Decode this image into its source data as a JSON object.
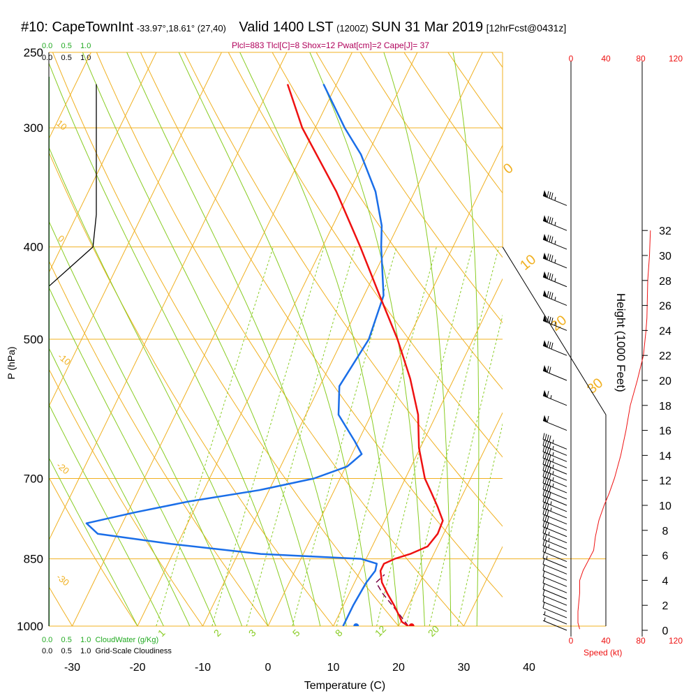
{
  "header": {
    "station": "#10: CapeTownInt",
    "coords": "-33.97°,18.61° (27,40)",
    "valid": "Valid 1400 LST",
    "zulu": "(1200Z)",
    "date": "SUN 31 Mar 2019",
    "forecast": "[12hrFcst@0431z]"
  },
  "stats_line": "Plcl=883 Tlcl[C]=8 Shox=12 Pwat[cm]=2 Cape[J]= 37",
  "top_scales": {
    "cloudwater_ticks": [
      "0.0",
      "0.5",
      "1.0"
    ],
    "cloudiness_ticks": [
      "0.0",
      "0.5",
      "1.0"
    ]
  },
  "bottom_scales": {
    "cloudwater_ticks": [
      "0.0",
      "0.5",
      "1.0"
    ],
    "cloudwater_label": "CloudWater (g/Kg)",
    "cloudiness_ticks": [
      "0.0",
      "0.5",
      "1.0"
    ],
    "cloudiness_label": "Grid-Scale Cloudiness"
  },
  "colors": {
    "isotherm": "#f0b020",
    "dry_adiabat": "#f0b020",
    "moist_adiabat": "#88cc22",
    "mixing_ratio": "#88cc22",
    "temperature": "#ee1111",
    "dewpoint": "#1a6ee8",
    "parcel": "#770044",
    "speed": "#ee1111",
    "cloud_water": "#22aa22"
  },
  "chart_data": {
    "type": "line",
    "title": "#10: CapeTownInt -33.97°,18.61° (27,40) Valid 1400 LST (1200Z) SUN 31 Mar 2019 [12hrFcst@0431z]",
    "xlabel": "Temperature (C)",
    "ylabel": "P (hPa)",
    "y2label": "Height (1000 Feet)",
    "speed_label": "Speed (kt)",
    "xlim": [
      -35,
      36
    ],
    "ylim": [
      1000,
      250
    ],
    "y_scale": "log",
    "grid": true,
    "pressure_ticks": [
      250,
      300,
      400,
      500,
      700,
      850,
      1000
    ],
    "pressure_tick_labels": [
      "250",
      "300",
      "400",
      "500",
      "700",
      "850",
      "1000"
    ],
    "temperature_ticks": [
      -30,
      -20,
      -10,
      0,
      10,
      20,
      30,
      40
    ],
    "temperature_tick_labels": [
      "-30",
      "-20",
      "-10",
      "0",
      "10",
      "20",
      "30",
      "40"
    ],
    "height_ticks": [
      0,
      2,
      4,
      6,
      8,
      10,
      12,
      14,
      16,
      18,
      20,
      22,
      24,
      26,
      28,
      30,
      32
    ],
    "height_tick_labels": [
      "0",
      "2",
      "4",
      "6",
      "8",
      "10",
      "12",
      "14",
      "16",
      "18",
      "20",
      "22",
      "24",
      "26",
      "28",
      "30",
      "32"
    ],
    "speed_ticks": [
      0,
      40,
      80,
      120
    ],
    "speed_tick_labels": [
      "0",
      "40",
      "80",
      "120"
    ],
    "dry_adiabat_labels": [
      "10",
      "0",
      "-10",
      "-20",
      "-30"
    ],
    "moist_adiabat_labels": [
      "0",
      "10",
      "20",
      "30"
    ],
    "mixing_ratio_labels": [
      "1",
      "2",
      "3",
      "5",
      "8",
      "12",
      "20"
    ],
    "series": [
      {
        "name": "Temperature",
        "pressure": [
          1000,
          990,
          975,
          950,
          925,
          900,
          875,
          860,
          850,
          840,
          825,
          800,
          775,
          750,
          725,
          700,
          650,
          600,
          550,
          500,
          450,
          400,
          350,
          300,
          270
        ],
        "value": [
          21.5,
          20.2,
          19.3,
          17.7,
          15.9,
          14.2,
          13.1,
          13.1,
          14.4,
          16.4,
          18.5,
          19.1,
          18.9,
          17.1,
          15.1,
          13.0,
          9.8,
          7.2,
          3.3,
          -1.6,
          -7.6,
          -14.2,
          -22.0,
          -32.0,
          -37.5
        ]
      },
      {
        "name": "Dewpoint",
        "pressure": [
          1000,
          985,
          950,
          900,
          875,
          860,
          850,
          840,
          820,
          800,
          780,
          760,
          740,
          720,
          700,
          680,
          660,
          640,
          600,
          560,
          500,
          450,
          400,
          380,
          350,
          320,
          300,
          270
        ],
        "value": [
          11.5,
          11.5,
          11.5,
          11.8,
          12.3,
          12.0,
          9.2,
          -6.5,
          -21.0,
          -33.0,
          -35.5,
          -29.0,
          -21.5,
          -11.5,
          -4.0,
          0.2,
          1.5,
          -0.5,
          -5.0,
          -7.0,
          -6.0,
          -7.0,
          -11.0,
          -12.5,
          -16.0,
          -21.0,
          -25.5,
          -32.0
        ]
      },
      {
        "name": "Parcel",
        "pressure": [
          1000,
          975,
          950,
          925,
          900,
          883
        ],
        "value": [
          21.5,
          19.5,
          17.4,
          15.2,
          13.3,
          14.0
        ]
      },
      {
        "name": "Speed",
        "height": [
          0.1,
          0.6,
          1.5,
          3.0,
          4.0,
          4.8,
          5.6,
          6.4,
          7.5,
          8.8,
          10.0,
          11.0,
          12.2,
          14.0,
          16.0,
          18.0,
          20.0,
          22.0,
          24.0,
          25.0,
          28.0,
          30.0,
          32.0
        ],
        "value": [
          10,
          8,
          8,
          10,
          10,
          14,
          20,
          26,
          28,
          32,
          38,
          44,
          50,
          57,
          63,
          68,
          76,
          83,
          86,
          87,
          88,
          90,
          91
        ]
      }
    ],
    "surface_markers": [
      {
        "name": "Surface dewpoint",
        "pressure": 1000,
        "value": 13.5
      },
      {
        "name": "Surface temperature",
        "pressure": 1000,
        "value": 22.0
      }
    ],
    "wind_barbs": [
      {
        "height": 0.0,
        "speed": 5
      },
      {
        "height": 0.5,
        "speed": 5
      },
      {
        "height": 1.0,
        "speed": 10
      },
      {
        "height": 1.5,
        "speed": 10
      },
      {
        "height": 2.0,
        "speed": 10
      },
      {
        "height": 2.5,
        "speed": 10
      },
      {
        "height": 3.0,
        "speed": 10
      },
      {
        "height": 3.5,
        "speed": 10
      },
      {
        "height": 4.0,
        "speed": 10
      },
      {
        "height": 4.5,
        "speed": 10
      },
      {
        "height": 5.0,
        "speed": 15
      },
      {
        "height": 5.5,
        "speed": 20
      },
      {
        "height": 6.0,
        "speed": 25
      },
      {
        "height": 6.5,
        "speed": 25
      },
      {
        "height": 7.0,
        "speed": 25
      },
      {
        "height": 7.5,
        "speed": 30
      },
      {
        "height": 8.0,
        "speed": 30
      },
      {
        "height": 8.5,
        "speed": 30
      },
      {
        "height": 9.0,
        "speed": 35
      },
      {
        "height": 9.5,
        "speed": 35
      },
      {
        "height": 10.0,
        "speed": 40
      },
      {
        "height": 10.5,
        "speed": 40
      },
      {
        "height": 11.0,
        "speed": 45
      },
      {
        "height": 11.5,
        "speed": 45
      },
      {
        "height": 12.0,
        "speed": 45
      },
      {
        "height": 12.5,
        "speed": 45
      },
      {
        "height": 13.0,
        "speed": 45
      },
      {
        "height": 13.5,
        "speed": 45
      },
      {
        "height": 14.0,
        "speed": 45
      },
      {
        "height": 14.5,
        "speed": 45
      },
      {
        "height": 16.0,
        "speed": 60
      },
      {
        "height": 18.0,
        "speed": 65
      },
      {
        "height": 20.0,
        "speed": 70
      },
      {
        "height": 22.0,
        "speed": 80
      },
      {
        "height": 24.0,
        "speed": 85
      },
      {
        "height": 26.0,
        "speed": 85
      },
      {
        "height": 27.5,
        "speed": 85
      },
      {
        "height": 29.0,
        "speed": 85
      },
      {
        "height": 30.5,
        "speed": 85
      },
      {
        "height": 32.0,
        "speed": 85
      },
      {
        "height": 34.0,
        "speed": 85
      }
    ],
    "cloudiness": {
      "pressure": [
        440,
        400,
        370,
        330,
        300,
        280,
        270
      ],
      "value": [
        0.0,
        0.93,
        1.0,
        1.0,
        1.0,
        1.0,
        1.0
      ]
    },
    "cloud_water": {
      "pressure": [
        1000,
        250
      ],
      "value": [
        0.0,
        0.0
      ]
    }
  }
}
